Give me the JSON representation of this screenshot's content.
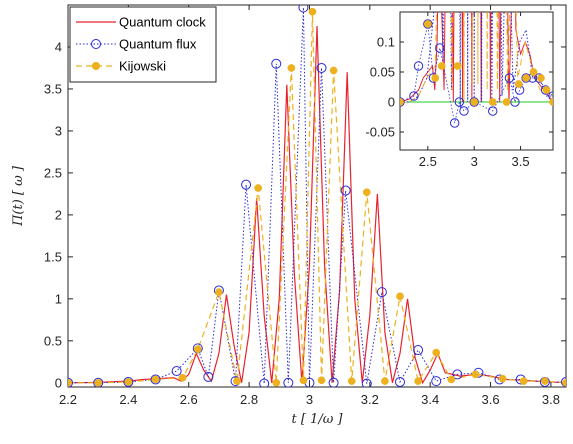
{
  "chart_data": {
    "type": "line",
    "xlabel": "t [ 1/ω ]",
    "ylabel": "Π(t) [ ω ]",
    "xlim": [
      2.2,
      3.85
    ],
    "ylim": [
      -0.05,
      4.5
    ],
    "xticks": [
      2.2,
      2.4,
      2.6,
      2.8,
      3.0,
      3.2,
      3.4,
      3.6,
      3.8
    ],
    "xtick_labels": [
      "2.2",
      "2.4",
      "2.6",
      "2.8",
      "3",
      "3.2",
      "3.4",
      "3.6",
      "3.8"
    ],
    "yticks": [
      0,
      0.5,
      1,
      1.5,
      2,
      2.5,
      3,
      3.5,
      4
    ],
    "ytick_labels": [
      "0",
      "0.5",
      "1",
      "1.5",
      "2",
      "2.5",
      "3",
      "3.5",
      "4"
    ],
    "grid": false,
    "legend_position": "top-left",
    "legend": [
      "Quantum clock",
      "Quantum flux",
      "Kijowski"
    ],
    "series": [
      {
        "name": "Quantum clock",
        "style": "solid line",
        "color": "#e8222e",
        "x": [
          2.2,
          2.3,
          2.4,
          2.45,
          2.5,
          2.55,
          2.575,
          2.6,
          2.625,
          2.65,
          2.675,
          2.7,
          2.725,
          2.75,
          2.775,
          2.8,
          2.825,
          2.85,
          2.875,
          2.9,
          2.925,
          2.95,
          2.975,
          3.0,
          3.025,
          3.05,
          3.075,
          3.1,
          3.125,
          3.15,
          3.175,
          3.2,
          3.225,
          3.25,
          3.275,
          3.3,
          3.325,
          3.35,
          3.375,
          3.4,
          3.425,
          3.45,
          3.5,
          3.55,
          3.6,
          3.65,
          3.7,
          3.75,
          3.8,
          3.85
        ],
        "y": [
          0.0,
          0.005,
          0.02,
          0.04,
          0.05,
          0.06,
          0.02,
          0.1,
          0.35,
          0.15,
          0.02,
          0.35,
          1.05,
          0.45,
          0.0,
          0.6,
          2.2,
          0.8,
          0.0,
          1.0,
          3.55,
          1.3,
          0.0,
          1.4,
          4.25,
          1.4,
          0.0,
          1.1,
          3.7,
          1.0,
          0.0,
          0.8,
          2.25,
          0.6,
          0.0,
          0.35,
          1.0,
          0.3,
          0.0,
          0.15,
          0.35,
          0.12,
          0.08,
          0.1,
          0.08,
          0.04,
          0.03,
          0.02,
          0.01,
          0.0
        ]
      },
      {
        "name": "Quantum flux",
        "style": "dotted line with open circles",
        "color": "#2b2bd6",
        "x": [
          2.2,
          2.3,
          2.4,
          2.49,
          2.56,
          2.63,
          2.665,
          2.7,
          2.755,
          2.79,
          2.85,
          2.89,
          2.93,
          2.98,
          3.0,
          3.04,
          3.08,
          3.12,
          3.19,
          3.24,
          3.3,
          3.36,
          3.42,
          3.49,
          3.56,
          3.63,
          3.7,
          3.78,
          3.85
        ],
        "y": [
          0.0,
          0.0,
          0.01,
          0.04,
          0.14,
          0.41,
          0.07,
          1.1,
          0.02,
          2.36,
          -0.01,
          3.8,
          0.0,
          4.47,
          0.0,
          3.75,
          0.0,
          2.29,
          -0.01,
          1.08,
          0.01,
          0.39,
          0.02,
          0.1,
          0.12,
          0.04,
          0.04,
          0.01,
          0.01
        ]
      },
      {
        "name": "Kijowski",
        "style": "dashed line with filled dots",
        "color": "#edb120",
        "x": [
          2.2,
          2.3,
          2.4,
          2.49,
          2.58,
          2.63,
          2.7,
          2.76,
          2.83,
          2.89,
          2.94,
          2.98,
          3.01,
          3.04,
          3.08,
          3.14,
          3.19,
          3.25,
          3.3,
          3.36,
          3.42,
          3.47,
          3.55,
          3.64,
          3.71,
          3.78,
          3.85
        ],
        "y": [
          0.0,
          0.0,
          0.01,
          0.04,
          0.06,
          0.4,
          1.08,
          0.02,
          2.32,
          0.0,
          3.75,
          0.03,
          4.42,
          0.03,
          3.72,
          0.02,
          2.27,
          0.02,
          1.03,
          0.02,
          0.36,
          0.04,
          0.1,
          0.05,
          0.02,
          0.02,
          0.0
        ]
      }
    ],
    "inset": {
      "type": "line",
      "xlim": [
        2.2,
        3.85
      ],
      "ylim": [
        -0.08,
        0.15
      ],
      "xticks": [
        2.5,
        3.0,
        3.5
      ],
      "xtick_labels": [
        "2.5",
        "3",
        "3.5"
      ],
      "yticks": [
        -0.05,
        0,
        0.05,
        0.1
      ],
      "ytick_labels": [
        "-0.05",
        "0",
        "0.05",
        "0.1"
      ],
      "zero_line_color": "#22cc22",
      "quantum_flux_markers": {
        "x": [
          2.2,
          2.35,
          2.4,
          2.5,
          2.56,
          2.63,
          2.79,
          2.84,
          2.89,
          3.0,
          3.2,
          3.38,
          3.44,
          3.49,
          3.56,
          3.63,
          3.7,
          3.77,
          3.85
        ],
        "y": [
          0.0,
          0.01,
          0.06,
          0.13,
          0.04,
          0.09,
          -0.035,
          0.0,
          -0.015,
          0.0,
          -0.015,
          0.04,
          0.0,
          0.02,
          0.04,
          0.04,
          0.04,
          0.02,
          0.01
        ]
      },
      "kijowski_markers": {
        "x": [
          2.2,
          2.5,
          2.58,
          2.65,
          2.82,
          3.0,
          3.2,
          3.35,
          3.48,
          3.56,
          3.64,
          3.72,
          3.78,
          3.85
        ],
        "y": [
          0.0,
          0.13,
          0.04,
          0.06,
          0.06,
          0.0,
          0.0,
          0.0,
          0.03,
          0.04,
          0.05,
          0.04,
          0.02,
          0.0
        ]
      }
    }
  }
}
